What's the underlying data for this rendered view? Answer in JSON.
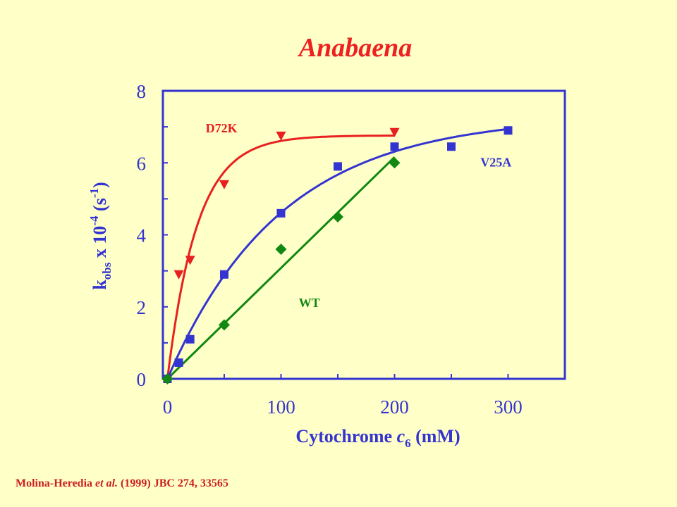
{
  "chart_data": {
    "type": "scatter",
    "title": "Anabaena",
    "xlabel": {
      "main": "Cytochrome ",
      "italic": "c",
      "sub": "6",
      "unit": " (mM)"
    },
    "ylabel": {
      "k": "k",
      "sub": "obs",
      "mid": " x 10",
      "sup": "-4",
      "unit_open": " (s",
      "unit_sup": "-1",
      "unit_close": ")"
    },
    "xlim": [
      -4,
      350
    ],
    "ylim": [
      0,
      8
    ],
    "x_ticks": [
      0,
      100,
      200,
      300
    ],
    "y_ticks": [
      0,
      2,
      4,
      6,
      8
    ],
    "grid": false,
    "series": [
      {
        "name": "D72K",
        "marker": "triangle-down",
        "color": "#e82020",
        "curve": "saturating",
        "x": [
          0,
          10,
          20,
          50,
          100,
          200
        ],
        "y": [
          0,
          2.9,
          3.3,
          5.4,
          6.75,
          6.85
        ]
      },
      {
        "name": "V25A",
        "marker": "square",
        "color": "#3434d0",
        "curve": "saturating",
        "x": [
          0,
          10,
          20,
          50,
          100,
          150,
          200,
          250,
          300
        ],
        "y": [
          0,
          0.45,
          1.1,
          2.9,
          4.6,
          5.9,
          6.45,
          6.45,
          6.9
        ]
      },
      {
        "name": "WT",
        "marker": "diamond",
        "color": "#118811",
        "curve": "linear",
        "x": [
          0,
          50,
          100,
          150,
          200
        ],
        "y": [
          0,
          1.5,
          3.6,
          4.5,
          6.0
        ]
      }
    ]
  },
  "citation": {
    "authors": "Molina-Heredia ",
    "etal": "et al.",
    "rest": " (1999) JBC 274, 33565"
  }
}
